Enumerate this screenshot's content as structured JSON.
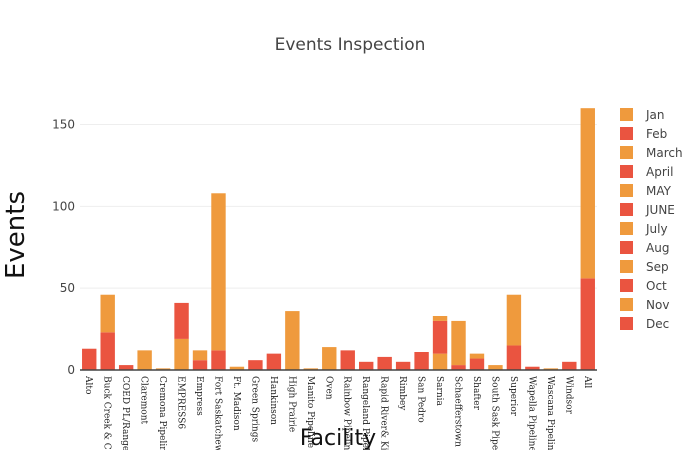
{
  "chart_data": {
    "type": "bar",
    "barmode": "stack",
    "title": "Events Inspection",
    "xlabel": "Facility",
    "ylabel": "Events",
    "ylim": [
      0,
      165
    ],
    "yticks": [
      0,
      50,
      100,
      150
    ],
    "legend_position": "right",
    "categories": [
      "Alto",
      "Buck Creek & CC",
      "COED PL/Rangel",
      "Claremont",
      "Cremona Pipeline",
      "EMPRESS6",
      "Empress",
      "Fort Saskatchew",
      "Ft. Madison",
      "Green Springs",
      "Hankinson",
      "High Prairie",
      "Manito Pipeline",
      "Oven",
      "Rainbow Pipeline",
      "Rangeland Pipeline",
      "Rapid River& Kir",
      "Rimbey",
      "San Pedro",
      "Sarnia",
      "Schaefferstown",
      "Shafter",
      "South Sask Pipe",
      "Superior",
      "Wapella Pipeline",
      "Wascana Pipeline",
      "Windsor",
      "All"
    ],
    "series": [
      {
        "name": "Jan",
        "color": "#ef9a3d",
        "values": [
          0,
          0,
          0,
          0,
          0,
          0,
          0,
          0,
          0,
          0,
          0,
          0,
          0,
          0,
          0,
          0,
          0,
          0,
          0,
          0,
          0,
          0,
          0,
          0,
          0,
          0,
          0,
          0
        ]
      },
      {
        "name": "Feb",
        "color": "#ea5440",
        "values": [
          13,
          0,
          0,
          0,
          0,
          0,
          0,
          0,
          0,
          0,
          0,
          0,
          0,
          0,
          0,
          0,
          0,
          0,
          0,
          0,
          0,
          0,
          0,
          0,
          0,
          0,
          0,
          0
        ]
      },
      {
        "name": "March",
        "color": "#ef9a3d",
        "values": [
          0,
          0,
          0,
          12,
          0,
          0,
          0,
          0,
          0,
          0,
          0,
          0,
          0,
          0,
          0,
          0,
          0,
          0,
          0,
          0,
          0,
          0,
          0,
          0,
          0,
          0,
          0,
          0
        ]
      },
      {
        "name": "April",
        "color": "#ea5440",
        "values": [
          0,
          23,
          0,
          0,
          0,
          0,
          0,
          0,
          0,
          6,
          10,
          0,
          0,
          0,
          0,
          5,
          8,
          5,
          11,
          0,
          0,
          0,
          0,
          15,
          0,
          0,
          5,
          56
        ]
      },
      {
        "name": "MAY",
        "color": "#ef9a3d",
        "values": [
          0,
          23,
          0,
          0,
          1,
          0,
          0,
          0,
          0,
          0,
          0,
          36,
          1,
          14,
          0,
          0,
          0,
          0,
          0,
          10,
          0,
          0,
          3,
          31,
          0,
          1,
          0,
          104
        ]
      },
      {
        "name": "JUNE",
        "color": "#ea5440",
        "values": [
          0,
          0,
          3,
          0,
          0,
          0,
          6,
          12,
          0,
          0,
          0,
          0,
          0,
          0,
          12,
          0,
          0,
          0,
          0,
          20,
          3,
          7,
          0,
          0,
          2,
          0,
          0,
          0
        ]
      },
      {
        "name": "July",
        "color": "#ef9a3d",
        "values": [
          0,
          0,
          0,
          0,
          0,
          19,
          6,
          96,
          2,
          0,
          0,
          0,
          0,
          0,
          0,
          0,
          0,
          0,
          0,
          0,
          27,
          3,
          0,
          0,
          0,
          0,
          0,
          0
        ]
      },
      {
        "name": "Aug",
        "color": "#ea5440",
        "values": [
          0,
          0,
          0,
          0,
          0,
          22,
          0,
          0,
          0,
          0,
          0,
          0,
          0,
          0,
          0,
          0,
          0,
          0,
          0,
          0,
          0,
          0,
          0,
          0,
          0,
          0,
          0,
          0
        ]
      },
      {
        "name": "Sep",
        "color": "#ef9a3d",
        "values": [
          0,
          0,
          0,
          0,
          0,
          0,
          0,
          0,
          0,
          0,
          0,
          0,
          0,
          0,
          0,
          0,
          0,
          0,
          0,
          3,
          0,
          0,
          0,
          0,
          0,
          0,
          0,
          0
        ]
      },
      {
        "name": "Oct",
        "color": "#ea5440",
        "values": [
          0,
          0,
          0,
          0,
          0,
          0,
          0,
          0,
          0,
          0,
          0,
          0,
          0,
          0,
          0,
          0,
          0,
          0,
          0,
          0,
          0,
          0,
          0,
          0,
          0,
          0,
          0,
          0
        ]
      },
      {
        "name": "Nov",
        "color": "#ef9a3d",
        "values": [
          0,
          0,
          0,
          0,
          0,
          0,
          0,
          0,
          0,
          0,
          0,
          0,
          0,
          0,
          0,
          0,
          0,
          0,
          0,
          0,
          0,
          0,
          0,
          0,
          0,
          0,
          0,
          0
        ]
      },
      {
        "name": "Dec",
        "color": "#ea5440",
        "values": [
          0,
          0,
          0,
          0,
          0,
          0,
          0,
          0,
          0,
          0,
          0,
          0,
          0,
          0,
          0,
          0,
          0,
          0,
          0,
          0,
          0,
          0,
          0,
          0,
          0,
          0,
          0,
          0
        ]
      }
    ]
  }
}
